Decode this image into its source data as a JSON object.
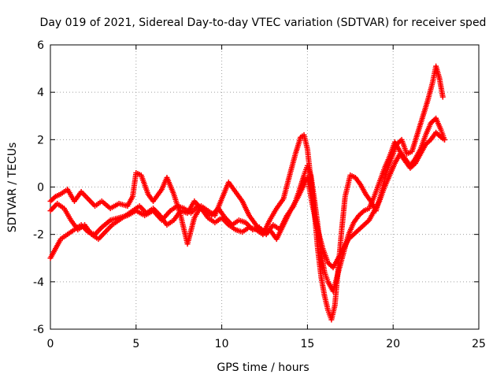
{
  "chart_data": {
    "type": "scatter",
    "title": "Day 019 of 2021, Sidereal Day-to-day VTEC variation (SDTVAR) for receiver sped",
    "xlabel": "GPS time / hours",
    "ylabel": "SDTVAR / TECUs",
    "xlim": [
      0,
      25
    ],
    "ylim": [
      -6,
      6
    ],
    "xticks": [
      0,
      5,
      10,
      15,
      20,
      25
    ],
    "yticks": [
      -6,
      -4,
      -2,
      0,
      2,
      4,
      6
    ],
    "grid": true,
    "marker": "+",
    "color": "#ff0000",
    "series": [
      {
        "x": [
          0,
          0.3,
          0.6,
          1.0,
          1.4,
          1.8,
          2.2,
          2.6,
          3.0,
          3.5,
          4.0,
          4.5,
          4.8,
          5.0,
          5.3,
          5.7,
          6.0,
          6.5,
          6.8,
          7.2,
          7.6,
          8.0,
          8.4,
          8.8,
          9.2,
          9.6,
          10.0,
          10.4,
          10.8,
          11.2,
          11.6,
          12.0,
          12.4,
          12.8,
          13.2,
          13.6,
          14.0,
          14.3,
          14.6,
          14.8,
          15.0,
          15.2,
          15.4,
          15.6,
          15.8,
          16.0,
          16.2,
          16.4,
          16.6,
          16.8,
          17.0,
          17.2,
          17.5,
          17.8,
          18.1,
          18.4,
          18.7,
          19.0,
          19.3,
          19.6,
          19.9,
          20.2,
          20.5,
          20.8,
          21.1,
          21.4,
          21.7,
          22.0,
          22.3,
          22.5,
          22.7,
          22.9
        ],
        "y": [
          -0.6,
          -0.4,
          -0.3,
          -0.1,
          -0.6,
          -0.2,
          -0.5,
          -0.8,
          -0.6,
          -0.9,
          -0.7,
          -0.8,
          -0.4,
          0.6,
          0.5,
          -0.3,
          -0.6,
          -0.1,
          0.4,
          -0.3,
          -1.2,
          -2.4,
          -1.3,
          -0.8,
          -1.0,
          -1.2,
          -0.5,
          0.2,
          -0.2,
          -0.6,
          -1.2,
          -1.6,
          -2.0,
          -1.4,
          -0.9,
          -0.5,
          0.6,
          1.4,
          2.1,
          2.2,
          1.6,
          0.3,
          -1.0,
          -2.6,
          -3.8,
          -4.6,
          -5.2,
          -5.6,
          -5.0,
          -3.4,
          -1.8,
          -0.4,
          0.5,
          0.4,
          0.1,
          -0.3,
          -0.6,
          -1.0,
          -0.3,
          0.6,
          1.2,
          1.8,
          2.0,
          1.4,
          1.5,
          2.2,
          2.9,
          3.6,
          4.4,
          5.1,
          4.6,
          3.8
        ]
      },
      {
        "x": [
          0,
          0.3,
          0.6,
          1.0,
          1.4,
          1.8,
          2.2,
          2.6,
          3.0,
          3.5,
          4.0,
          4.5,
          5.0,
          5.5,
          6.0,
          6.5,
          7.0,
          7.4,
          7.8,
          8.2,
          8.6,
          9.0,
          9.4,
          9.8,
          10.2,
          10.6,
          11.0,
          11.4,
          11.8,
          12.2,
          12.6,
          13.0,
          13.4,
          13.8,
          14.2,
          14.5,
          14.8,
          15.0,
          15.2,
          15.4,
          15.6,
          15.8,
          16.0,
          16.2,
          16.5,
          16.8,
          17.1,
          17.4,
          17.7,
          18.0,
          18.3,
          18.6,
          18.9,
          19.2,
          19.5,
          19.8,
          20.1,
          20.4,
          20.7,
          21.0,
          21.3,
          21.6,
          21.9,
          22.2,
          22.5,
          22.8,
          23.0
        ],
        "y": [
          -3.0,
          -2.6,
          -2.2,
          -2.0,
          -1.8,
          -1.6,
          -1.9,
          -2.0,
          -1.7,
          -1.4,
          -1.3,
          -1.2,
          -1.0,
          -1.2,
          -1.0,
          -1.4,
          -1.0,
          -0.8,
          -0.9,
          -1.1,
          -0.8,
          -1.0,
          -1.2,
          -0.9,
          -1.3,
          -1.6,
          -1.4,
          -1.5,
          -1.8,
          -1.7,
          -2.0,
          -1.6,
          -1.8,
          -1.2,
          -0.8,
          -0.2,
          0.5,
          0.9,
          0.5,
          -0.5,
          -1.6,
          -2.8,
          -3.6,
          -4.0,
          -4.4,
          -3.6,
          -2.8,
          -2.0,
          -1.5,
          -1.2,
          -1.0,
          -0.9,
          -0.4,
          0.2,
          0.8,
          1.3,
          1.9,
          1.5,
          1.2,
          0.9,
          1.2,
          1.6,
          2.2,
          2.7,
          2.9,
          2.4,
          2.0
        ]
      },
      {
        "x": [
          0,
          0.4,
          0.8,
          1.2,
          1.6,
          2.0,
          2.4,
          2.8,
          3.2,
          3.6,
          4.0,
          4.4,
          4.8,
          5.2,
          5.6,
          6.0,
          6.4,
          6.8,
          7.2,
          7.6,
          8.0,
          8.4,
          8.8,
          9.2,
          9.6,
          10.0,
          10.4,
          10.8,
          11.2,
          11.6,
          12.0,
          12.4,
          12.8,
          13.2,
          13.6,
          14.0,
          14.4,
          14.8,
          15.0,
          15.3,
          15.6,
          15.9,
          16.2,
          16.5,
          16.8,
          17.1,
          17.4,
          17.7,
          18.0,
          18.3,
          18.6,
          18.9,
          19.2,
          19.5,
          19.8,
          20.1,
          20.4,
          20.7,
          21.0,
          21.3,
          21.6,
          21.9,
          22.2,
          22.5,
          22.8,
          23.0
        ],
        "y": [
          -1.0,
          -0.7,
          -0.9,
          -1.4,
          -1.8,
          -1.6,
          -2.0,
          -2.2,
          -1.9,
          -1.6,
          -1.4,
          -1.2,
          -1.0,
          -0.8,
          -1.1,
          -0.9,
          -1.2,
          -1.6,
          -1.4,
          -1.0,
          -1.1,
          -0.6,
          -0.9,
          -1.3,
          -1.5,
          -1.3,
          -1.6,
          -1.8,
          -1.9,
          -1.7,
          -1.8,
          -2.0,
          -1.8,
          -2.2,
          -1.6,
          -1.0,
          -0.5,
          0.1,
          0.4,
          -0.8,
          -1.8,
          -2.6,
          -3.2,
          -3.4,
          -3.0,
          -2.6,
          -2.2,
          -2.0,
          -1.8,
          -1.6,
          -1.4,
          -1.0,
          -0.6,
          0.0,
          0.5,
          1.0,
          1.4,
          1.1,
          0.8,
          1.0,
          1.4,
          1.8,
          2.0,
          2.3,
          2.1,
          2.0
        ]
      }
    ]
  }
}
